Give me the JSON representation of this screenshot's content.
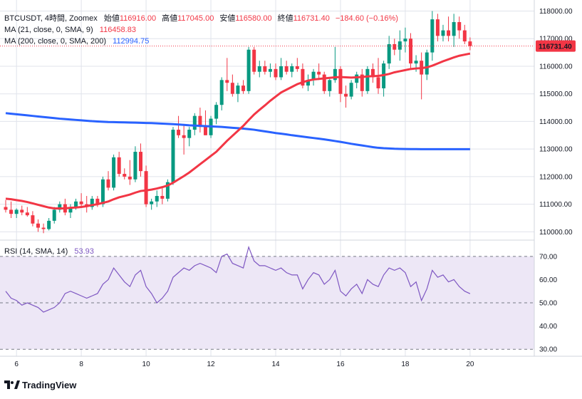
{
  "header": {
    "symbol": "BTCUSDT, 4時間, Zoomex",
    "open_label": "始値",
    "open": "116916.00",
    "high_label": "高値",
    "high": "117045.00",
    "low_label": "安値",
    "low": "116580.00",
    "close_label": "終値",
    "close": "116731.40",
    "change": "−184.60 (−0.16%)"
  },
  "indicators": {
    "ma21": {
      "label": "MA (21, close, 0, SMA, 9)",
      "value": "116458.83",
      "color": "#F23645"
    },
    "ma200": {
      "label": "MA (200, close, 0, SMA, 200)",
      "value": "112994.75",
      "color": "#2962FF"
    },
    "rsi": {
      "label": "RSI (14, SMA, 14)",
      "value": "53.93",
      "color": "#7E57C2"
    }
  },
  "price_tag": "116731.40",
  "brand": "TradingView",
  "colors": {
    "up": "#089981",
    "down": "#F23645",
    "grid": "#e0e3eb",
    "rsi_band": "#ede7f6"
  },
  "chart_data": {
    "type": "candlestick",
    "x_ticks": [
      "6",
      "8",
      "10",
      "12",
      "14",
      "16",
      "18",
      "20"
    ],
    "price_axis": {
      "ticks": [
        "110000.00",
        "111000.00",
        "112000.00",
        "113000.00",
        "114000.00",
        "115000.00",
        "116000.00",
        "117000.00",
        "118000.00"
      ],
      "range": [
        109700,
        118400
      ]
    },
    "candles": [
      [
        110900,
        111150,
        110700,
        110800
      ],
      [
        110800,
        111100,
        110500,
        110650
      ],
      [
        110650,
        110850,
        110500,
        110800
      ],
      [
        110800,
        110950,
        110600,
        110700
      ],
      [
        110700,
        110900,
        110550,
        110600
      ],
      [
        110600,
        110750,
        110200,
        110300
      ],
      [
        110300,
        110450,
        110000,
        110150
      ],
      [
        110150,
        110300,
        109950,
        110100
      ],
      [
        110100,
        110500,
        110050,
        110400
      ],
      [
        110400,
        110900,
        110300,
        110800
      ],
      [
        110800,
        111100,
        110700,
        111000
      ],
      [
        111000,
        111200,
        110600,
        110700
      ],
      [
        110700,
        111000,
        110500,
        110900
      ],
      [
        110900,
        111200,
        110800,
        111100
      ],
      [
        111100,
        111400,
        110900,
        111000
      ],
      [
        111000,
        111300,
        110700,
        110900
      ],
      [
        110900,
        111300,
        110800,
        111200
      ],
      [
        111200,
        111300,
        110900,
        111000
      ],
      [
        111000,
        112000,
        110900,
        111900
      ],
      [
        111900,
        112200,
        111500,
        111600
      ],
      [
        111600,
        112800,
        111500,
        112700
      ],
      [
        112700,
        112900,
        112000,
        112100
      ],
      [
        112100,
        112300,
        111900,
        112000
      ],
      [
        112000,
        112600,
        111700,
        111900
      ],
      [
        111900,
        113100,
        111800,
        112900
      ],
      [
        112900,
        113200,
        112000,
        112200
      ],
      [
        112200,
        112400,
        110900,
        111000
      ],
      [
        111000,
        111200,
        110800,
        111100
      ],
      [
        111100,
        111500,
        110900,
        111300
      ],
      [
        111300,
        111600,
        111000,
        111200
      ],
      [
        111200,
        111900,
        111100,
        111800
      ],
      [
        111800,
        113800,
        111700,
        113700
      ],
      [
        113700,
        114200,
        113400,
        113500
      ],
      [
        113500,
        113900,
        112800,
        113400
      ],
      [
        113400,
        113800,
        113100,
        113700
      ],
      [
        113700,
        114300,
        113500,
        114200
      ],
      [
        114200,
        114500,
        113600,
        113800
      ],
      [
        113800,
        114400,
        113500,
        113500
      ],
      [
        113500,
        114200,
        113400,
        114100
      ],
      [
        114100,
        114700,
        113900,
        114600
      ],
      [
        114600,
        115600,
        114400,
        115500
      ],
      [
        115500,
        116300,
        115100,
        115400
      ],
      [
        115400,
        115700,
        114900,
        115000
      ],
      [
        115000,
        115400,
        114700,
        115300
      ],
      [
        115300,
        115500,
        115000,
        115100
      ],
      [
        115100,
        116700,
        115000,
        116600
      ],
      [
        116600,
        116700,
        115700,
        115800
      ],
      [
        115800,
        116200,
        115600,
        116000
      ],
      [
        116000,
        116200,
        115700,
        115800
      ],
      [
        115800,
        116100,
        115600,
        115900
      ],
      [
        115900,
        116100,
        115500,
        115600
      ],
      [
        115600,
        116300,
        115500,
        116000
      ],
      [
        116000,
        116200,
        115700,
        115800
      ],
      [
        115800,
        116100,
        115600,
        116000
      ],
      [
        116000,
        116300,
        115800,
        115900
      ],
      [
        115900,
        116100,
        115200,
        115300
      ],
      [
        115300,
        115700,
        115100,
        115500
      ],
      [
        115500,
        115900,
        115300,
        115800
      ],
      [
        115800,
        116100,
        115500,
        115700
      ],
      [
        115700,
        115800,
        115000,
        115100
      ],
      [
        115100,
        115600,
        114900,
        115500
      ],
      [
        115500,
        116700,
        115400,
        115900
      ],
      [
        115900,
        116000,
        114700,
        115000
      ],
      [
        115000,
        115300,
        114500,
        114900
      ],
      [
        114900,
        115500,
        114800,
        115400
      ],
      [
        115400,
        115800,
        115200,
        115700
      ],
      [
        115700,
        115900,
        114900,
        115100
      ],
      [
        115100,
        116000,
        115000,
        115900
      ],
      [
        115900,
        116100,
        115400,
        115600
      ],
      [
        115600,
        116300,
        115000,
        115200
      ],
      [
        115200,
        116200,
        114900,
        116100
      ],
      [
        116100,
        117100,
        115900,
        116800
      ],
      [
        116800,
        117000,
        116400,
        116600
      ],
      [
        116600,
        117300,
        116200,
        116900
      ],
      [
        116900,
        117400,
        116500,
        117000
      ],
      [
        117000,
        117200,
        115900,
        116100
      ],
      [
        116100,
        116400,
        115800,
        116200
      ],
      [
        116200,
        116500,
        114800,
        115700
      ],
      [
        115700,
        116600,
        115500,
        116500
      ],
      [
        116500,
        118000,
        116200,
        117700
      ],
      [
        117700,
        117900,
        116900,
        117100
      ],
      [
        117100,
        117500,
        116900,
        117300
      ],
      [
        117300,
        117800,
        116900,
        117100
      ],
      [
        117100,
        117900,
        116700,
        117600
      ],
      [
        117600,
        117800,
        117000,
        117300
      ],
      [
        117300,
        117500,
        116800,
        116900
      ],
      [
        116900,
        117045,
        116580,
        116731.4
      ]
    ],
    "ma21": [
      111200,
      111180,
      111150,
      111120,
      111080,
      111030,
      110980,
      110930,
      110880,
      110850,
      110850,
      110850,
      110870,
      110880,
      110900,
      110930,
      110970,
      111000,
      111050,
      111100,
      111180,
      111250,
      111300,
      111350,
      111420,
      111480,
      111500,
      111530,
      111570,
      111620,
      111680,
      111780,
      111900,
      112020,
      112150,
      112300,
      112450,
      112600,
      112750,
      112900,
      113100,
      113300,
      113480,
      113660,
      113840,
      114050,
      114250,
      114420,
      114580,
      114750,
      114900,
      115050,
      115150,
      115250,
      115350,
      115420,
      115480,
      115520,
      115540,
      115560,
      115580,
      115600,
      115610,
      115600,
      115590,
      115600,
      115610,
      115630,
      115640,
      115650,
      115680,
      115720,
      115780,
      115820,
      115860,
      115900,
      115920,
      115930,
      115960,
      116020,
      116100,
      116180,
      116250,
      116320,
      116380,
      116420,
      116458.83
    ],
    "ma200": [
      114300,
      114280,
      114260,
      114240,
      114220,
      114200,
      114180,
      114160,
      114140,
      114120,
      114100,
      114085,
      114070,
      114055,
      114040,
      114025,
      114010,
      114000,
      113990,
      113980,
      113975,
      113970,
      113965,
      113960,
      113955,
      113950,
      113945,
      113940,
      113930,
      113920,
      113910,
      113900,
      113890,
      113875,
      113860,
      113850,
      113840,
      113830,
      113820,
      113810,
      113800,
      113785,
      113770,
      113755,
      113740,
      113720,
      113700,
      113670,
      113640,
      113610,
      113580,
      113555,
      113530,
      113500,
      113475,
      113450,
      113425,
      113400,
      113375,
      113350,
      113320,
      113290,
      113260,
      113225,
      113190,
      113160,
      113130,
      113100,
      113070,
      113045,
      113030,
      113020,
      113010,
      113005,
      113000,
      112998,
      112997,
      112996,
      112995,
      112995,
      112995,
      112995,
      112995,
      112995,
      112995,
      112995,
      112994.75
    ],
    "rsi_axis": {
      "ticks": [
        "30.00",
        "40.00",
        "50.00",
        "60.00",
        "70.00"
      ],
      "range": [
        27,
        77
      ],
      "upper": 70,
      "lower": 30,
      "mid": 50
    },
    "rsi": [
      55,
      52,
      51,
      49,
      50,
      49,
      48,
      46,
      47,
      48,
      50,
      54,
      55,
      54,
      53,
      52,
      53,
      54,
      58,
      60,
      65,
      62,
      59,
      57,
      62,
      64,
      57,
      54,
      50,
      52,
      55,
      61,
      63,
      65,
      64,
      66,
      67,
      66,
      65,
      63,
      70,
      71,
      67,
      66,
      65,
      74,
      68,
      66,
      66,
      65,
      64,
      65,
      63,
      62,
      62,
      56,
      60,
      63,
      62,
      58,
      60,
      64,
      55,
      53,
      56,
      58,
      54,
      60,
      58,
      57,
      62,
      65,
      64,
      65,
      63,
      57,
      59,
      51,
      56,
      64,
      61,
      62,
      59,
      60,
      57,
      55,
      53.93
    ]
  }
}
